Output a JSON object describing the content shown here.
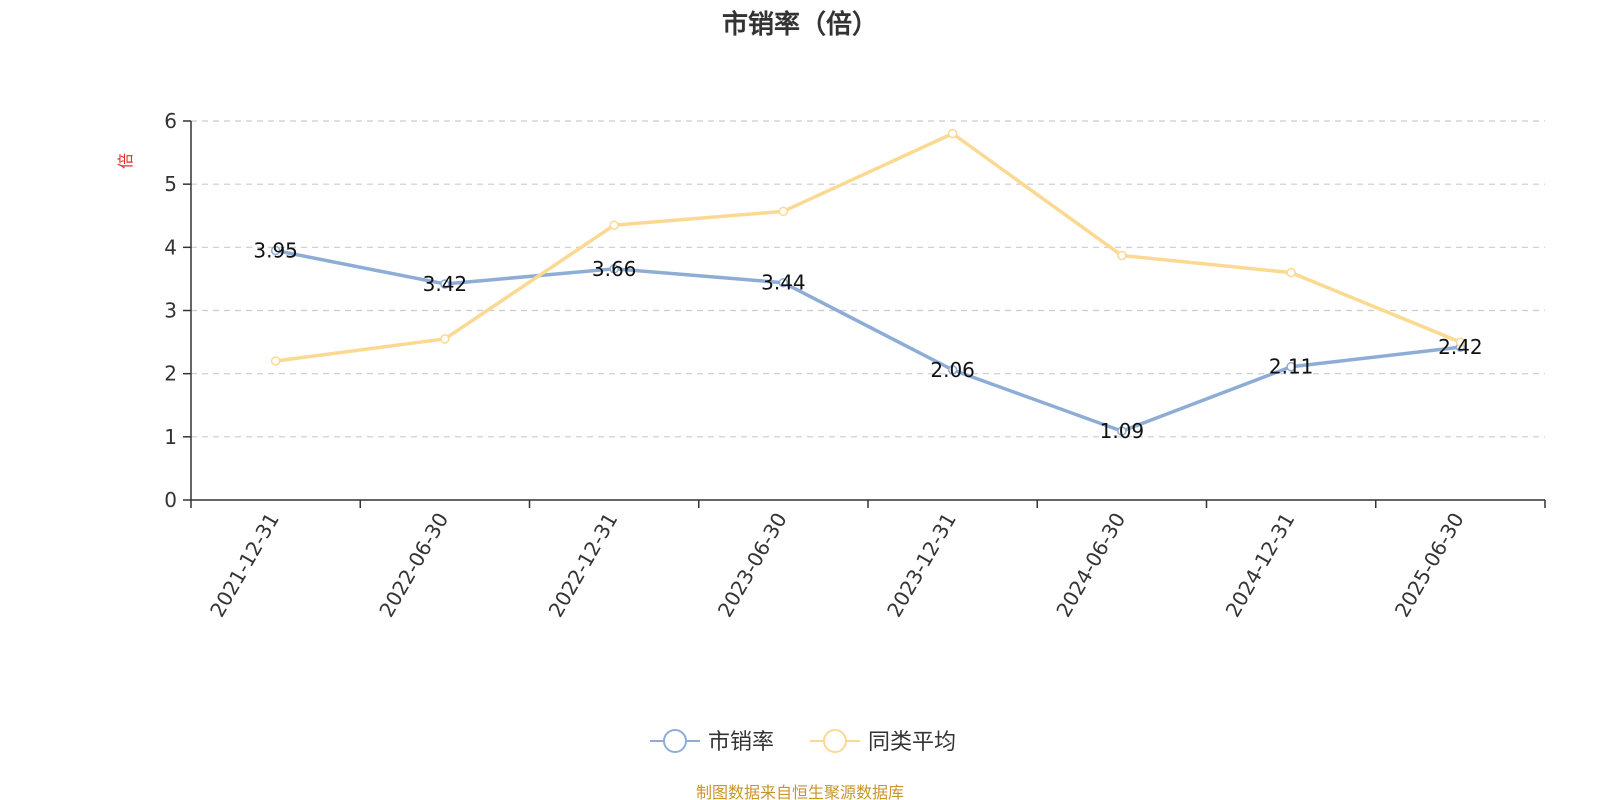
{
  "chart_data": {
    "type": "line",
    "title": "市销率（倍）",
    "ylabel": "倍",
    "categories": [
      "2021-12-31",
      "2022-06-30",
      "2022-12-31",
      "2023-06-30",
      "2023-12-31",
      "2024-06-30",
      "2024-12-31",
      "2025-06-30"
    ],
    "ylim": [
      0,
      6
    ],
    "yticks": [
      0,
      1,
      2,
      3,
      4,
      5,
      6
    ],
    "grid": true,
    "legend_position": "bottom-center",
    "series": [
      {
        "name": "市销率",
        "color": "#8eadd6",
        "values": [
          3.95,
          3.42,
          3.66,
          3.44,
          2.06,
          1.09,
          2.11,
          2.42
        ],
        "labels": [
          "3.95",
          "3.42",
          "3.66",
          "3.44",
          "2.06",
          "1.09",
          "2.11",
          "2.42"
        ]
      },
      {
        "name": "同类平均",
        "color": "#fbd992",
        "values": [
          2.2,
          2.55,
          4.35,
          4.57,
          5.8,
          3.87,
          3.6,
          2.5
        ]
      }
    ]
  },
  "source_note": "制图数据来自恒生聚源数据库"
}
